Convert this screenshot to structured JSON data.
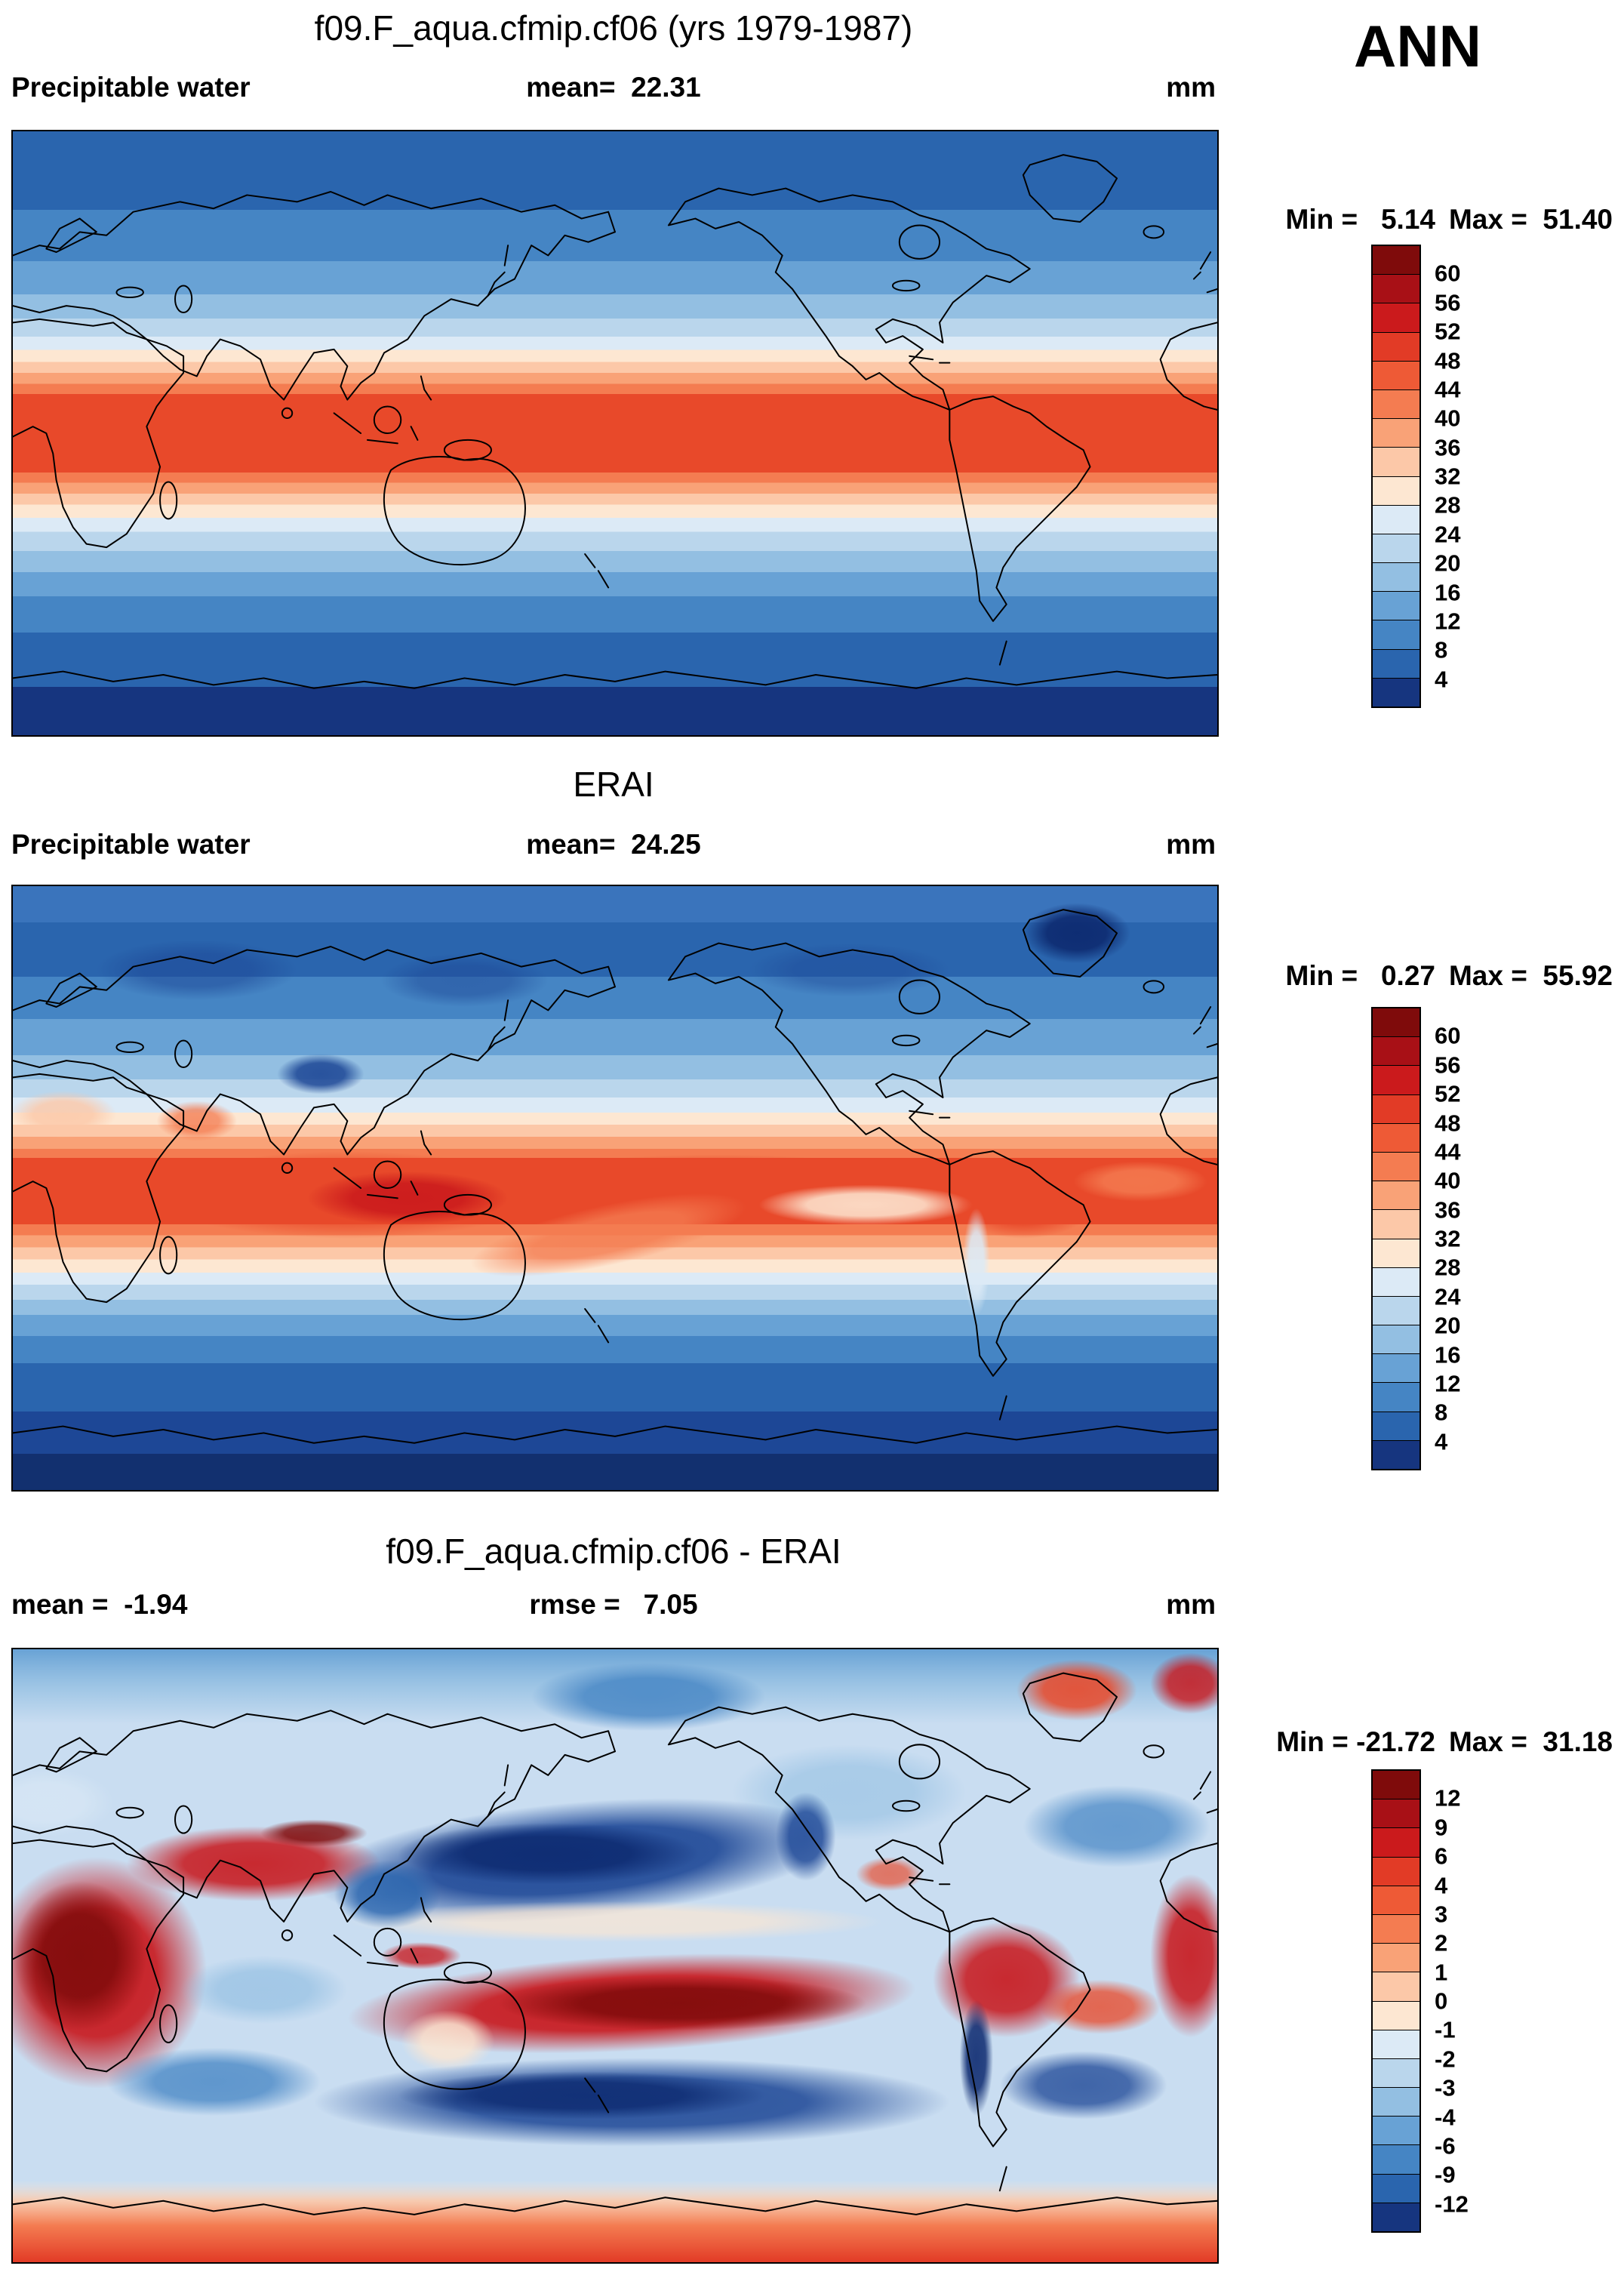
{
  "figure": {
    "season_label": "ANN",
    "background": "#ffffff"
  },
  "panels": [
    {
      "title": "f09.F_aqua.cfmip.cf06 (yrs 1979-1987)",
      "left_label": "Precipitable water",
      "center_label": "mean=  22.31",
      "right_label": "mm",
      "min_label": "Min =   5.14",
      "max_label": "Max =  51.40",
      "colorbar": {
        "ticks": [
          "60",
          "56",
          "52",
          "48",
          "44",
          "40",
          "36",
          "32",
          "28",
          "24",
          "20",
          "16",
          "12",
          "8",
          "4"
        ],
        "colors": [
          "#7f0b0b",
          "#a81016",
          "#cb1a1c",
          "#e23b26",
          "#ee5a36",
          "#f47c51",
          "#f9a277",
          "#fcc8a8",
          "#fde7d2",
          "#dceaf6",
          "#bad6ec",
          "#93bfe2",
          "#68a2d5",
          "#4585c4",
          "#2a65ae",
          "#16357f"
        ]
      }
    },
    {
      "title": "ERAI",
      "left_label": "Precipitable water",
      "center_label": "mean=  24.25",
      "right_label": "mm",
      "min_label": "Min =   0.27",
      "max_label": "Max =  55.92",
      "colorbar": {
        "ticks": [
          "60",
          "56",
          "52",
          "48",
          "44",
          "40",
          "36",
          "32",
          "28",
          "24",
          "20",
          "16",
          "12",
          "8",
          "4"
        ],
        "colors": [
          "#7f0b0b",
          "#a81016",
          "#cb1a1c",
          "#e23b26",
          "#ee5a36",
          "#f47c51",
          "#f9a277",
          "#fcc8a8",
          "#fde7d2",
          "#dceaf6",
          "#bad6ec",
          "#93bfe2",
          "#68a2d5",
          "#4585c4",
          "#2a65ae",
          "#16357f"
        ]
      }
    },
    {
      "title": "f09.F_aqua.cfmip.cf06 - ERAI",
      "left_label": "mean =  -1.94",
      "center_label": "rmse =   7.05",
      "right_label": "mm",
      "min_label": "Min = -21.72",
      "max_label": "Max =  31.18",
      "colorbar": {
        "ticks": [
          "12",
          "9",
          "6",
          "4",
          "3",
          "2",
          "1",
          "0",
          "-1",
          "-2",
          "-3",
          "-4",
          "-6",
          "-9",
          "-12"
        ],
        "colors": [
          "#7f0b0b",
          "#a81016",
          "#cb1a1c",
          "#e23b26",
          "#ee5a36",
          "#f47c51",
          "#f9a277",
          "#fcc8a8",
          "#fde7d2",
          "#dceaf6",
          "#bad6ec",
          "#93bfe2",
          "#68a2d5",
          "#4585c4",
          "#2a65ae",
          "#16357f"
        ]
      }
    }
  ],
  "chart_data": [
    {
      "type": "heatmap",
      "subtype": "filled-contour global map",
      "title": "f09.F_aqua.cfmip.cf06 (yrs 1979-1987)",
      "variable": "Precipitable water",
      "season": "ANN",
      "units": "mm",
      "mean": 22.31,
      "min": 5.14,
      "max": 51.4,
      "contour_levels": [
        4,
        8,
        12,
        16,
        20,
        24,
        28,
        32,
        36,
        40,
        44,
        48,
        52,
        56,
        60
      ],
      "palette_high_to_low": [
        "#7f0b0b",
        "#a81016",
        "#cb1a1c",
        "#e23b26",
        "#ee5a36",
        "#f47c51",
        "#f9a277",
        "#fcc8a8",
        "#fde7d2",
        "#dceaf6",
        "#bad6ec",
        "#93bfe2",
        "#68a2d5",
        "#4585c4",
        "#2a65ae",
        "#16357f"
      ],
      "description": "Zonally symmetric aquaplanet field: ~44-52 mm band straddling the equator, decreasing in latitudinal bands to ~5 mm near the poles; continent outlines overlaid."
    },
    {
      "type": "heatmap",
      "subtype": "filled-contour global map",
      "title": "ERAI",
      "variable": "Precipitable water",
      "units": "mm",
      "mean": 24.25,
      "min": 0.27,
      "max": 55.92,
      "contour_levels": [
        4,
        8,
        12,
        16,
        20,
        24,
        28,
        32,
        36,
        40,
        44,
        48,
        52,
        56,
        60
      ],
      "description": "Reanalysis field: maxima >48 mm over the tropical Indo-Pacific warm pool, Amazon and Atlantic ITCZ; pale cold tongue in the east Pacific; minima <4 mm over Antarctica, Greenland and the Tibetan Plateau."
    },
    {
      "type": "heatmap",
      "subtype": "filled-contour global difference map",
      "title": "f09.F_aqua.cfmip.cf06 - ERAI",
      "variable": "Precipitable water difference",
      "units": "mm",
      "mean": -1.94,
      "rmse": 7.05,
      "min": -21.72,
      "max": 31.18,
      "contour_levels": [
        -12,
        -9,
        -6,
        -4,
        -3,
        -2,
        -1,
        0,
        1,
        2,
        3,
        4,
        6,
        9,
        12
      ],
      "description": "Model minus reanalysis: strong positive (red) differences over Africa, the Middle East/India, the south-tropical Pacific band, South America, Greenland and Antarctica; strong negative (blue) differences over the subtropical North Pacific, Tibet/Southeast Asia, the Maritime Continent and the southern subtropical oceans."
    }
  ]
}
